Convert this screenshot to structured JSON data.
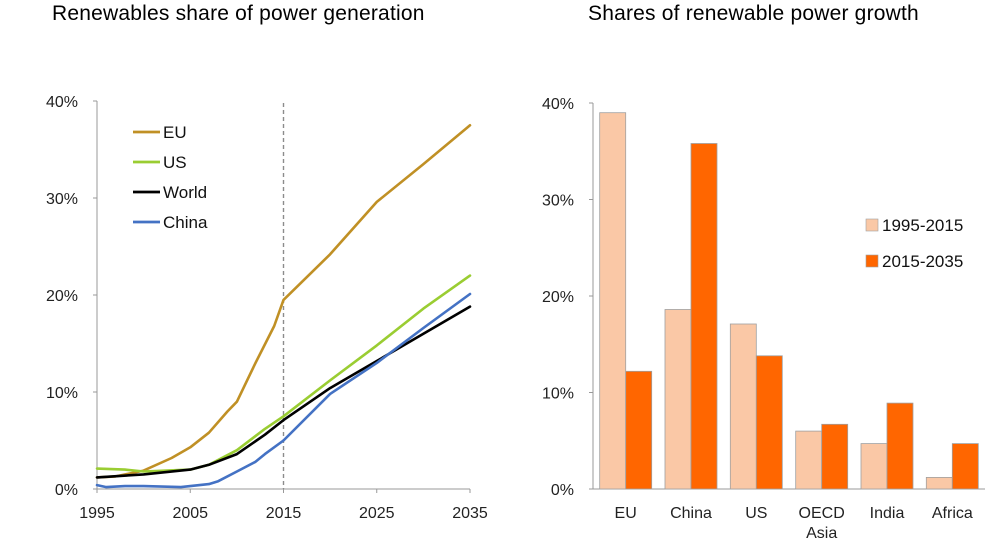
{
  "chart_data": [
    {
      "type": "line",
      "title": "Renewables share of power generation",
      "xlabel": "",
      "ylabel": "",
      "xlim": [
        1995,
        2035
      ],
      "ylim": [
        0,
        40
      ],
      "x_ticks": [
        "1995",
        "2005",
        "2015",
        "2025",
        "2035"
      ],
      "y_ticks": [
        "0%",
        "10%",
        "20%",
        "30%",
        "40%"
      ],
      "reference_line": {
        "x": 2015,
        "style": "dashed"
      },
      "legend": {
        "placement": "top-left"
      },
      "series": [
        {
          "name": "EU",
          "color": "#C09025",
          "points": [
            [
              1995,
              1.2
            ],
            [
              1997,
              1.3
            ],
            [
              2000,
              1.9
            ],
            [
              2003,
              3.2
            ],
            [
              2005,
              4.3
            ],
            [
              2007,
              5.8
            ],
            [
              2009,
              8.0
            ],
            [
              2010,
              9.0
            ],
            [
              2012,
              13.0
            ],
            [
              2014,
              16.8
            ],
            [
              2015,
              19.5
            ],
            [
              2020,
              24.2
            ],
            [
              2025,
              29.6
            ],
            [
              2030,
              33.5
            ],
            [
              2035,
              37.5
            ]
          ]
        },
        {
          "name": "US",
          "color": "#9ACD32",
          "points": [
            [
              1995,
              2.1
            ],
            [
              1998,
              2.0
            ],
            [
              2000,
              1.8
            ],
            [
              2005,
              2.0
            ],
            [
              2007,
              2.5
            ],
            [
              2010,
              4.0
            ],
            [
              2013,
              6.2
            ],
            [
              2015,
              7.5
            ],
            [
              2020,
              11.2
            ],
            [
              2025,
              14.8
            ],
            [
              2030,
              18.6
            ],
            [
              2035,
              22.0
            ]
          ]
        },
        {
          "name": "World",
          "color": "#000000",
          "points": [
            [
              1995,
              1.2
            ],
            [
              2000,
              1.5
            ],
            [
              2005,
              2.0
            ],
            [
              2007,
              2.5
            ],
            [
              2010,
              3.6
            ],
            [
              2013,
              5.6
            ],
            [
              2015,
              7.1
            ],
            [
              2020,
              10.4
            ],
            [
              2025,
              13.2
            ],
            [
              2030,
              16.0
            ],
            [
              2035,
              18.8
            ]
          ]
        },
        {
          "name": "China",
          "color": "#4472C4",
          "points": [
            [
              1995,
              0.4
            ],
            [
              1996,
              0.2
            ],
            [
              1998,
              0.3
            ],
            [
              2000,
              0.3
            ],
            [
              2004,
              0.2
            ],
            [
              2006,
              0.4
            ],
            [
              2007,
              0.5
            ],
            [
              2008,
              0.8
            ],
            [
              2010,
              1.8
            ],
            [
              2012,
              2.8
            ],
            [
              2013,
              3.6
            ],
            [
              2015,
              5.0
            ],
            [
              2020,
              9.8
            ],
            [
              2025,
              13.0
            ],
            [
              2030,
              16.6
            ],
            [
              2035,
              20.1
            ]
          ]
        }
      ]
    },
    {
      "type": "bar",
      "title": "Shares of renewable power growth",
      "xlabel": "",
      "ylabel": "",
      "ylim": [
        0,
        40
      ],
      "y_ticks": [
        "0%",
        "10%",
        "20%",
        "30%",
        "40%"
      ],
      "categories": [
        "EU",
        "China",
        "US",
        "OECD Asia",
        "India",
        "Africa"
      ],
      "category_lines": [
        [
          "EU"
        ],
        [
          "China"
        ],
        [
          "US"
        ],
        [
          "OECD",
          "Asia"
        ],
        [
          "India"
        ],
        [
          "Africa"
        ]
      ],
      "legend": {
        "placement": "right"
      },
      "series": [
        {
          "name": "1995-2015",
          "color": "#FAC8A6",
          "values": [
            39.0,
            18.6,
            17.1,
            6.0,
            4.7,
            1.2
          ]
        },
        {
          "name": "2015-2035",
          "color": "#FF6600",
          "values": [
            12.2,
            35.8,
            13.8,
            6.7,
            8.9,
            4.7
          ]
        }
      ]
    }
  ]
}
